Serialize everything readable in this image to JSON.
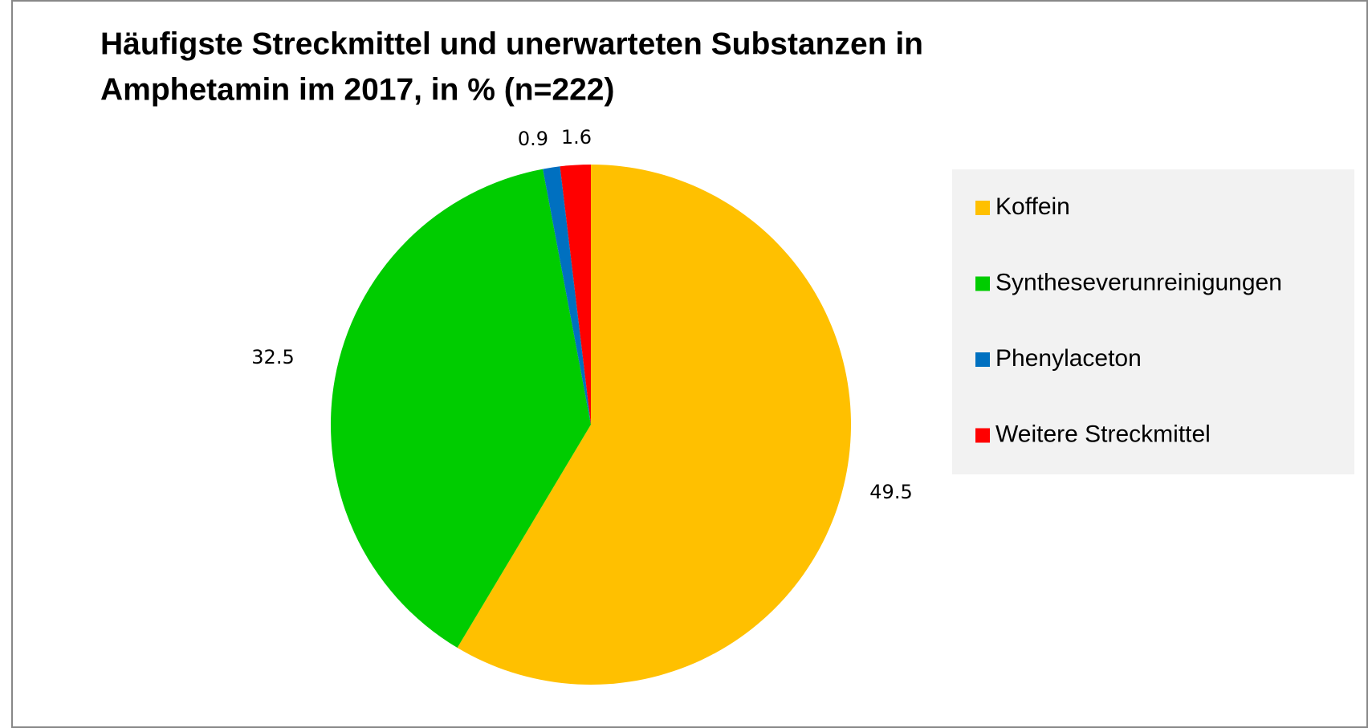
{
  "chart_data": {
    "type": "pie",
    "title": [
      "Häufigste Streckmittel und unerwarteten Substanzen in",
      "Amphetamin im 2017, in % (n=222)"
    ],
    "categories": [
      "Koffein",
      "Syntheseverunreinigungen",
      "Phenylaceton",
      "Weitere Streckmittel"
    ],
    "values": [
      49.5,
      32.5,
      0.9,
      1.6
    ],
    "colors": [
      "#ffc000",
      "#00cc00",
      "#0070c0",
      "#ff0000"
    ],
    "legend": "right"
  }
}
